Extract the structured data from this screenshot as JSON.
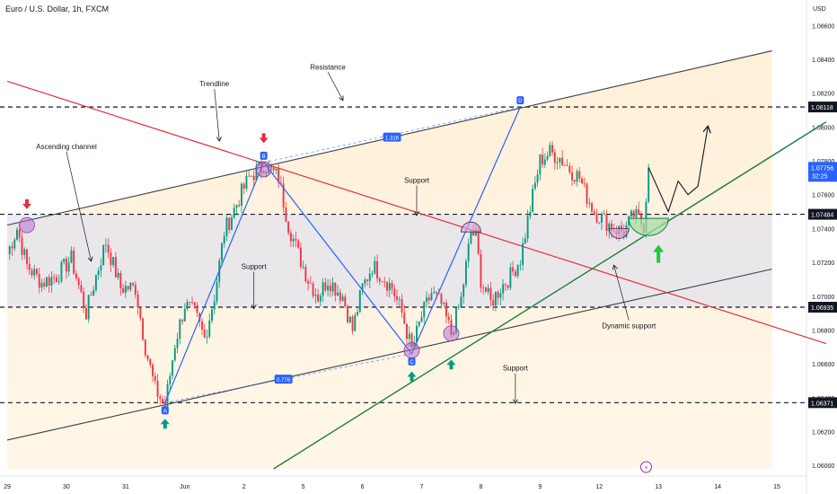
{
  "header": {
    "title": "Euro / U.S. Dollar, 1h, FXCM",
    "currency": "USD",
    "countdown": "32:25"
  },
  "chart_data": {
    "type": "candlestick",
    "symbol": "EURUSD",
    "interval": "1h",
    "y_ticks": [
      1.06,
      1.062,
      1.064,
      1.066,
      1.068,
      1.07,
      1.072,
      1.074,
      1.076,
      1.078,
      1.08,
      1.082,
      1.084,
      1.086
    ],
    "y_tick_labels": [
      "1.06000",
      "1.06200",
      "1.06400",
      "1.06600",
      "1.06800",
      "1.07000",
      "1.07200",
      "1.07400",
      "1.07600",
      "1.07800",
      "1.08000",
      "1.08200",
      "1.08400",
      "1.08600"
    ],
    "ylim": [
      1.0598,
      1.0875
    ],
    "x_ticks": [
      {
        "index": 0,
        "label": "29"
      },
      {
        "index": 24,
        "label": "30"
      },
      {
        "index": 48,
        "label": "31"
      },
      {
        "index": 72,
        "label": "Jun"
      },
      {
        "index": 96,
        "label": "2"
      },
      {
        "index": 120,
        "label": "5"
      },
      {
        "index": 144,
        "label": "6"
      },
      {
        "index": 168,
        "label": "7"
      },
      {
        "index": 192,
        "label": "8"
      },
      {
        "index": 216,
        "label": "9"
      },
      {
        "index": 240,
        "label": "12"
      },
      {
        "index": 264,
        "label": "13"
      },
      {
        "index": 288,
        "label": "14"
      },
      {
        "index": 312,
        "label": "15"
      }
    ],
    "xlim": [
      0,
      324
    ],
    "price_levels": [
      {
        "value": 1.08118,
        "label": "1.08118",
        "kind": "resistance"
      },
      {
        "value": 1.07484,
        "label": "1.07484",
        "kind": "support"
      },
      {
        "value": 1.06935,
        "label": "1.06935",
        "kind": "support"
      },
      {
        "value": 1.06371,
        "label": "1.06371",
        "kind": "support"
      }
    ],
    "last_price": {
      "value": 1.07756,
      "label": "1.07756"
    },
    "up_color": "#089981",
    "down_color": "#f23645",
    "waypoints": [
      [
        0,
        1.0725
      ],
      [
        4,
        1.074
      ],
      [
        8,
        1.0718
      ],
      [
        14,
        1.0708
      ],
      [
        20,
        1.0712
      ],
      [
        26,
        1.0722
      ],
      [
        32,
        1.069
      ],
      [
        36,
        1.0712
      ],
      [
        40,
        1.0732
      ],
      [
        46,
        1.0705
      ],
      [
        52,
        1.0705
      ],
      [
        56,
        1.067
      ],
      [
        60,
        1.0645
      ],
      [
        64,
        1.0635
      ],
      [
        68,
        1.0672
      ],
      [
        72,
        1.0695
      ],
      [
        76,
        1.069
      ],
      [
        80,
        1.0675
      ],
      [
        84,
        1.07
      ],
      [
        88,
        1.0738
      ],
      [
        94,
        1.0758
      ],
      [
        98,
        1.077
      ],
      [
        104,
        1.0778
      ],
      [
        110,
        1.077
      ],
      [
        114,
        1.0742
      ],
      [
        118,
        1.0725
      ],
      [
        122,
        1.071
      ],
      [
        126,
        1.07
      ],
      [
        130,
        1.071
      ],
      [
        136,
        1.07
      ],
      [
        140,
        1.068
      ],
      [
        144,
        1.0705
      ],
      [
        148,
        1.0718
      ],
      [
        152,
        1.0712
      ],
      [
        156,
        1.0705
      ],
      [
        160,
        1.069
      ],
      [
        164,
        1.0668
      ],
      [
        168,
        1.0688
      ],
      [
        172,
        1.0702
      ],
      [
        176,
        1.0695
      ],
      [
        180,
        1.0678
      ],
      [
        184,
        1.0698
      ],
      [
        188,
        1.0738
      ],
      [
        190,
        1.0735
      ],
      [
        192,
        1.071
      ],
      [
        196,
        1.0696
      ],
      [
        200,
        1.0705
      ],
      [
        204,
        1.0712
      ],
      [
        208,
        1.0722
      ],
      [
        212,
        1.0752
      ],
      [
        216,
        1.078
      ],
      [
        220,
        1.0785
      ],
      [
        224,
        1.0782
      ],
      [
        228,
        1.0775
      ],
      [
        232,
        1.077
      ],
      [
        234,
        1.0762
      ],
      [
        238,
        1.075
      ],
      [
        242,
        1.0745
      ],
      [
        246,
        1.074
      ],
      [
        250,
        1.0738
      ],
      [
        254,
        1.0748
      ],
      [
        258,
        1.0742
      ],
      [
        260,
        1.0776
      ]
    ],
    "projection": [
      [
        260,
        1.0776
      ],
      [
        268,
        1.075
      ],
      [
        272,
        1.0768
      ],
      [
        276,
        1.076
      ],
      [
        280,
        1.0765
      ],
      [
        284,
        1.08
      ]
    ],
    "points": [
      {
        "name": "A",
        "x": 64,
        "y": 1.06371
      },
      {
        "name": "B",
        "x": 104,
        "y": 1.0779
      },
      {
        "name": "C",
        "x": 164,
        "y": 1.0666
      },
      {
        "name": "D",
        "x": 208,
        "y": 1.08118
      }
    ],
    "ratios": [
      {
        "label": "1.316",
        "x": 156,
        "y": 1.0794
      },
      {
        "label": "0.776",
        "x": 112,
        "y": 1.0651
      }
    ],
    "channel": {
      "upper": [
        [
          0,
          1.0742
        ],
        [
          310,
          1.0845
        ]
      ],
      "lower": [
        [
          0,
          1.0615
        ],
        [
          310,
          1.0716
        ]
      ]
    },
    "trendline": [
      [
        0,
        1.0827
      ],
      [
        332,
        1.0672
      ]
    ],
    "dynamic_support": [
      [
        108,
        1.0598
      ],
      [
        332,
        1.0803
      ]
    ],
    "markers_down": [
      {
        "x": 8,
        "y": 1.0753
      },
      {
        "x": 104,
        "y": 1.0792
      }
    ],
    "markers_up": [
      {
        "x": 64,
        "y": 1.0626
      },
      {
        "x": 164,
        "y": 1.0654
      },
      {
        "x": 180,
        "y": 1.0661
      }
    ],
    "highlight_up": {
      "x": 264,
      "y": 1.0725
    },
    "annotations": [
      {
        "text": "Ascending channel",
        "x": 24,
        "y": 1.0787
      },
      {
        "text": "Trendline",
        "x": 84,
        "y": 1.0824
      },
      {
        "text": "Resistance",
        "x": 130,
        "y": 1.0834
      },
      {
        "text": "Support",
        "x": 166,
        "y": 1.0767
      },
      {
        "text": "Support",
        "x": 100,
        "y": 1.0716
      },
      {
        "text": "Support",
        "x": 206,
        "y": 1.0656
      },
      {
        "text": "Dynamic support",
        "x": 252,
        "y": 1.0681
      }
    ]
  }
}
